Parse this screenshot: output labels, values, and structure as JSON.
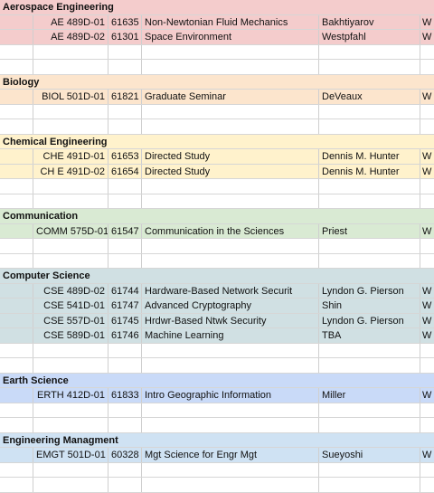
{
  "sections": [
    {
      "key": "aero",
      "name": "Aerospace Engineering",
      "color": "#f4cccc",
      "courses": [
        {
          "section": "AE 489D-01",
          "crn": "61635",
          "title": "Non-Newtonian Fluid Mechanics",
          "instructor": "Bakhtiyarov",
          "extra": "W"
        },
        {
          "section": "AE 489D-02",
          "crn": "61301",
          "title": "Space Environment",
          "instructor": "Westpfahl",
          "extra": "W"
        }
      ]
    },
    {
      "key": "bio",
      "name": "Biology",
      "color": "#fce5cd",
      "courses": [
        {
          "section": "BIOL 501D-01",
          "crn": "61821",
          "title": "Graduate Seminar",
          "instructor": "DeVeaux",
          "extra": "W"
        }
      ]
    },
    {
      "key": "chem",
      "name": "Chemical Engineering",
      "color": "#fff2cc",
      "courses": [
        {
          "section": "CHE 491D-01",
          "crn": "61653",
          "title": "Directed Study",
          "instructor": "Dennis M. Hunter",
          "extra": "W"
        },
        {
          "section": "CH E 491D-02",
          "crn": "61654",
          "title": "Directed Study",
          "instructor": "Dennis M. Hunter",
          "extra": "W"
        }
      ]
    },
    {
      "key": "comm",
      "name": "Communication",
      "color": "#d9ead3",
      "courses": [
        {
          "section": "COMM 575D-01",
          "crn": "61547",
          "title": "Communication in the Sciences",
          "instructor": "Priest",
          "extra": "W"
        }
      ]
    },
    {
      "key": "cs",
      "name": "Computer Science",
      "color": "#d0e0e3",
      "courses": [
        {
          "section": "CSE 489D-02",
          "crn": "61744",
          "title": "Hardware-Based Network Securit",
          "instructor": "Lyndon G. Pierson",
          "extra": "W"
        },
        {
          "section": "CSE 541D-01",
          "crn": "61747",
          "title": "Advanced Cryptography",
          "instructor": "Shin",
          "extra": "W"
        },
        {
          "section": "CSE 557D-01",
          "crn": "61745",
          "title": "Hrdwr-Based Ntwk Security",
          "instructor": "Lyndon G. Pierson",
          "extra": "W"
        },
        {
          "section": "CSE 589D-01",
          "crn": "61746",
          "title": "Machine Learning",
          "instructor": "TBA",
          "extra": "W"
        }
      ]
    },
    {
      "key": "earth",
      "name": "Earth Science",
      "color": "#c9daf8",
      "courses": [
        {
          "section": "ERTH 412D-01",
          "crn": "61833",
          "title": "Intro Geographic Information",
          "instructor": "Miller",
          "extra": "W"
        }
      ]
    },
    {
      "key": "emgt",
      "name": "Engineering Managment",
      "color": "#cfe2f3",
      "courses": [
        {
          "section": "EMGT 501D-01",
          "crn": "60328",
          "title": "Mgt Science for Engr Mgt",
          "instructor": "Sueyoshi",
          "extra": "W"
        }
      ]
    }
  ]
}
